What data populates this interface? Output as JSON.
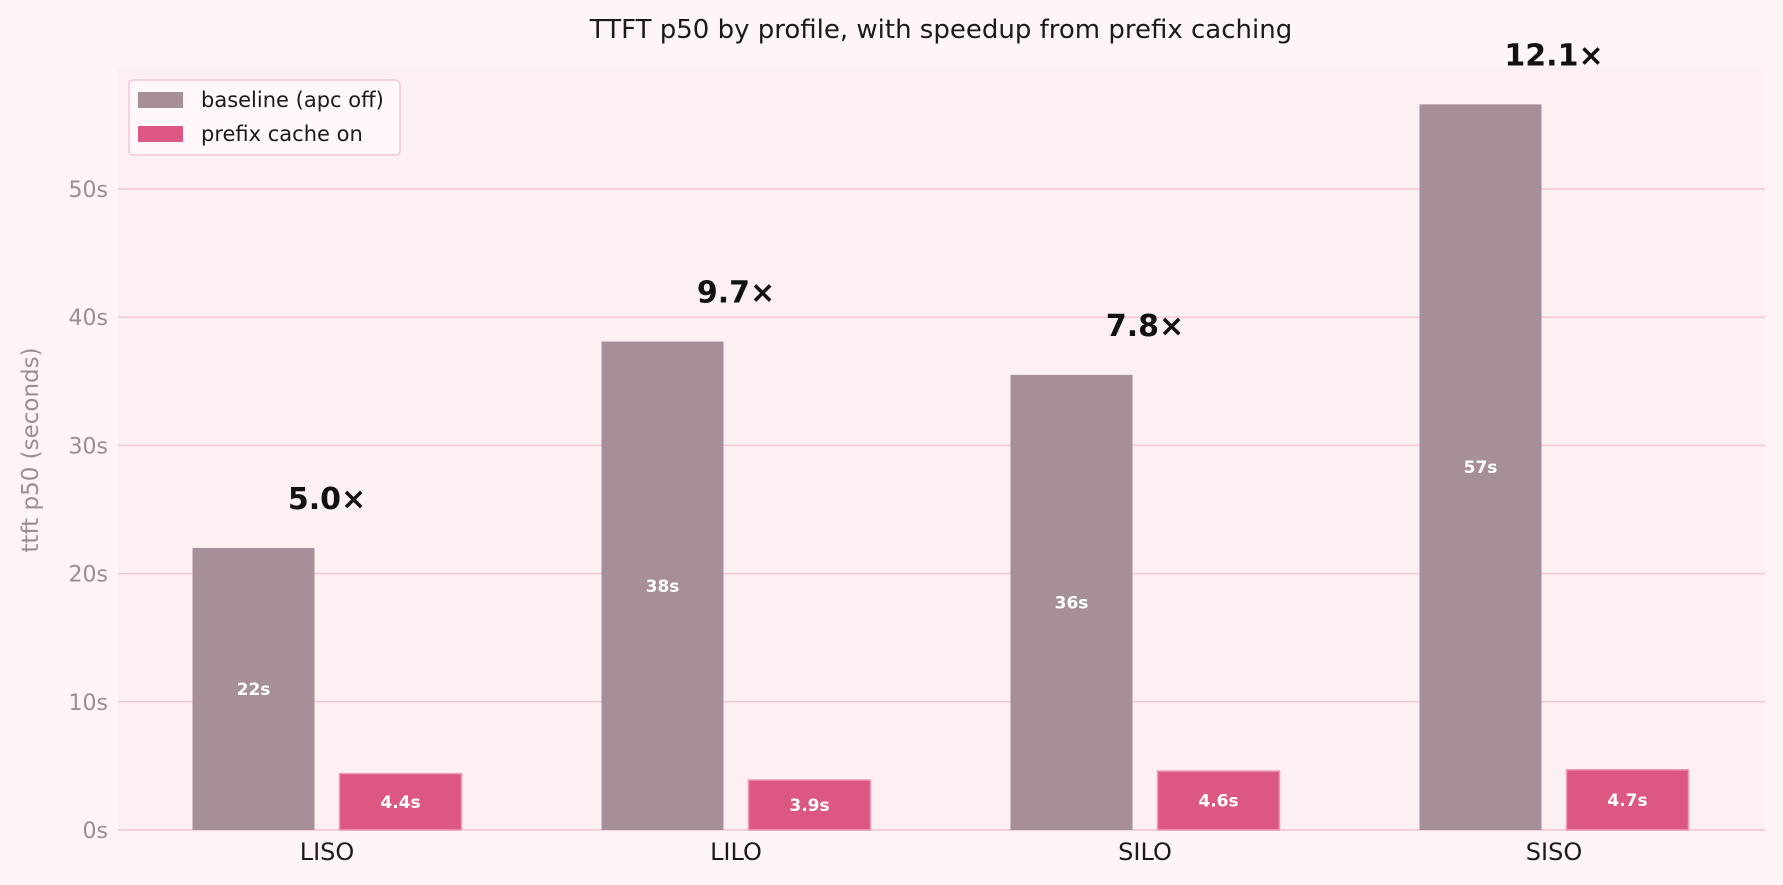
{
  "chart_data": {
    "type": "bar",
    "title": "TTFT p50 by profile, with speedup from prefix caching",
    "ylabel": "ttft p50  (seconds)",
    "xlabel": "",
    "ylim": [
      0,
      59.5
    ],
    "yticks": [
      0,
      10,
      20,
      30,
      40,
      50
    ],
    "ytick_suffix": "s",
    "grid": true,
    "legend_position": "top-left",
    "categories": [
      "LISO",
      "LILO",
      "SILO",
      "SISO"
    ],
    "series": [
      {
        "name": "baseline  (apc off)",
        "color": "#a68f99",
        "values": [
          22,
          38.1,
          35.5,
          56.6
        ],
        "labels": [
          "22s",
          "38s",
          "36s",
          "57s"
        ]
      },
      {
        "name": "prefix cache on",
        "color": "#dc5882",
        "values": [
          4.4,
          3.9,
          4.6,
          4.7
        ],
        "labels": [
          "4.4s",
          "3.9s",
          "4.6s",
          "4.7s"
        ]
      }
    ],
    "speedups": [
      "5.0×",
      "9.7×",
      "7.8×",
      "12.1×"
    ],
    "colors": {
      "background": "#fff4f6",
      "plot_background": "#fcf0f3",
      "grid": "#f2c8d5"
    }
  }
}
